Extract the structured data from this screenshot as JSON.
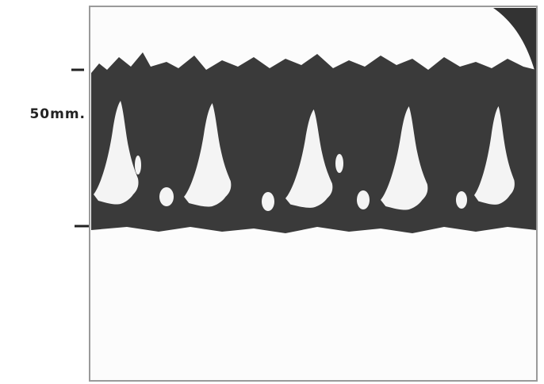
{
  "figure": {
    "scale_label": "50mm."
  }
}
